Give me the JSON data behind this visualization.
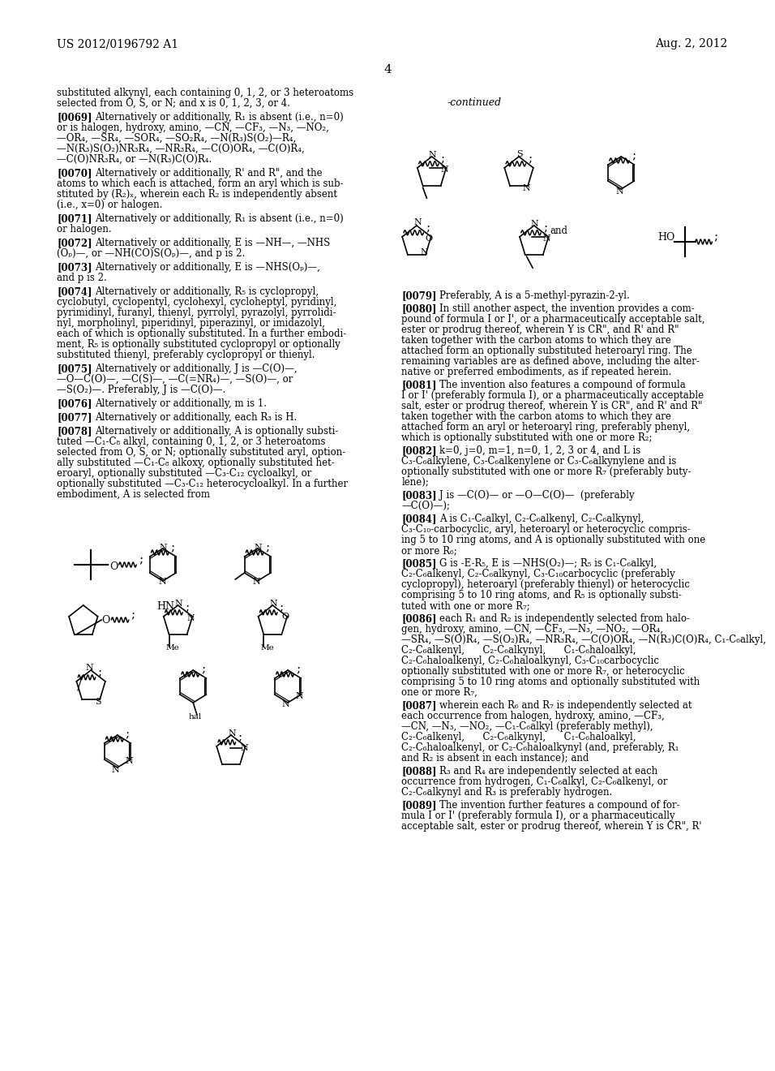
{
  "page_number": "4",
  "header_left": "US 2012/0196792 A1",
  "header_right": "Aug. 2, 2012",
  "bg": "#ffffff",
  "fg": "#000000",
  "fs": 8.5,
  "lh": 13.0
}
